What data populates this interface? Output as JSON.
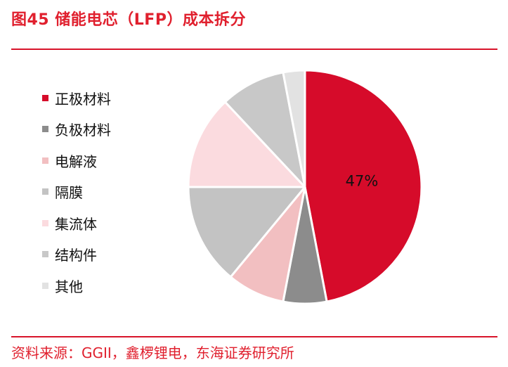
{
  "figure": {
    "title": "图45  储能电芯（LFP）成本拆分",
    "source": "资料来源：GGII，鑫椤锂电，东海证券研究所"
  },
  "colors": {
    "accent": "#d8142a",
    "text": "#111111"
  },
  "chart_data": {
    "type": "pie",
    "title": "",
    "categories": [
      "正极材料",
      "负极材料",
      "电解液",
      "隔膜",
      "集流体",
      "结构件",
      "其他"
    ],
    "values": [
      47,
      6,
      8,
      14,
      13,
      9,
      3
    ],
    "colors": [
      "#d60b2a",
      "#8c8c8c",
      "#f2bfc1",
      "#c3c3c3",
      "#fbdbdf",
      "#c8c8c8",
      "#e2e2e2"
    ],
    "data_labels": [
      "47%",
      "",
      "",
      "",
      "",
      "",
      ""
    ],
    "legend_position": "left"
  }
}
